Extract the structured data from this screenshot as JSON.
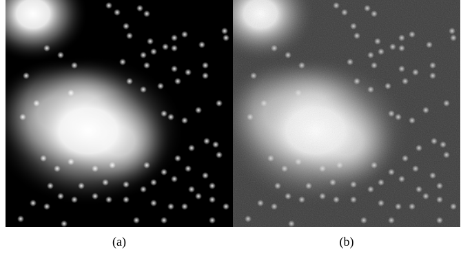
{
  "panels": [
    {
      "id": "a",
      "caption": "(a)",
      "background_color": "#000000",
      "noisy": false
    },
    {
      "id": "b",
      "caption": "(b)",
      "background_color": "#3c3c3c",
      "noisy": true
    }
  ]
}
